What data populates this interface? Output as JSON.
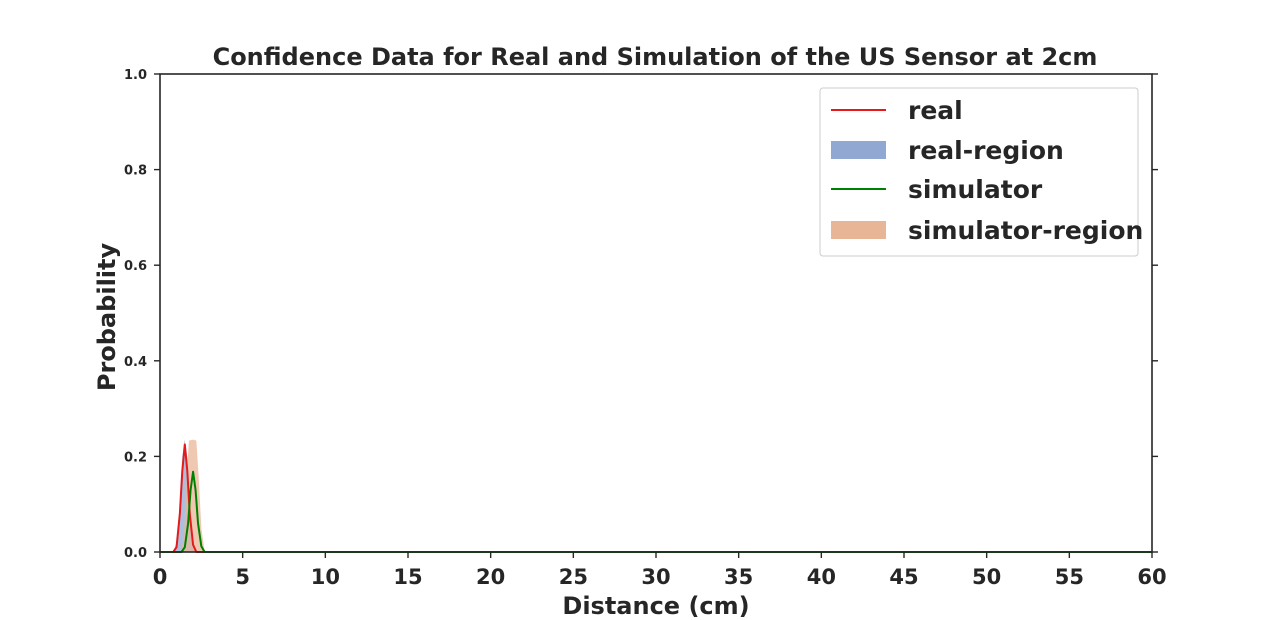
{
  "chart_data": {
    "type": "line",
    "title": "Confidence Data for Real and Simulation of the US Sensor at 2cm",
    "xlabel": "Distance (cm)",
    "ylabel": "Probability",
    "xlim": [
      0,
      60
    ],
    "ylim": [
      0,
      1.0
    ],
    "xticks": [
      "0",
      "5",
      "10",
      "15",
      "20",
      "25",
      "30",
      "35",
      "40",
      "45",
      "50",
      "55",
      "60"
    ],
    "yticks": [
      "0.0",
      "0.2",
      "0.4",
      "0.6",
      "0.8",
      "1.0"
    ],
    "grid": false,
    "legend_position": "top-right",
    "series": [
      {
        "name": "real",
        "kind": "line",
        "color": "#e41a1c",
        "points": [
          [
            0,
            0
          ],
          [
            0.8,
            0
          ],
          [
            1.0,
            0.01
          ],
          [
            1.2,
            0.08
          ],
          [
            1.35,
            0.17
          ],
          [
            1.5,
            0.225
          ],
          [
            1.65,
            0.17
          ],
          [
            1.8,
            0.08
          ],
          [
            2.0,
            0.015
          ],
          [
            2.2,
            0.0
          ],
          [
            60,
            0
          ]
        ]
      },
      {
        "name": "real-region",
        "kind": "band",
        "color": "#91a9d2",
        "points": [
          [
            0.8,
            0
          ],
          [
            1.0,
            0.02
          ],
          [
            1.2,
            0.1
          ],
          [
            1.35,
            0.2
          ],
          [
            1.5,
            0.235
          ],
          [
            1.65,
            0.2
          ],
          [
            1.8,
            0.1
          ],
          [
            2.0,
            0.02
          ],
          [
            2.2,
            0.0
          ]
        ]
      },
      {
        "name": "simulator",
        "kind": "line",
        "color": "#008000",
        "points": [
          [
            0,
            0
          ],
          [
            1.3,
            0
          ],
          [
            1.5,
            0.01
          ],
          [
            1.7,
            0.06
          ],
          [
            1.85,
            0.13
          ],
          [
            2.0,
            0.168
          ],
          [
            2.15,
            0.13
          ],
          [
            2.3,
            0.06
          ],
          [
            2.5,
            0.012
          ],
          [
            2.7,
            0.0
          ],
          [
            60,
            0
          ]
        ]
      },
      {
        "name": "simulator-region",
        "kind": "band",
        "color": "#e8b597",
        "points": [
          [
            1.25,
            0
          ],
          [
            1.45,
            0.03
          ],
          [
            1.6,
            0.15
          ],
          [
            1.75,
            0.233
          ],
          [
            2.0,
            0.235
          ],
          [
            2.2,
            0.233
          ],
          [
            2.35,
            0.15
          ],
          [
            2.5,
            0.05
          ],
          [
            2.7,
            0.0
          ]
        ]
      }
    ]
  }
}
